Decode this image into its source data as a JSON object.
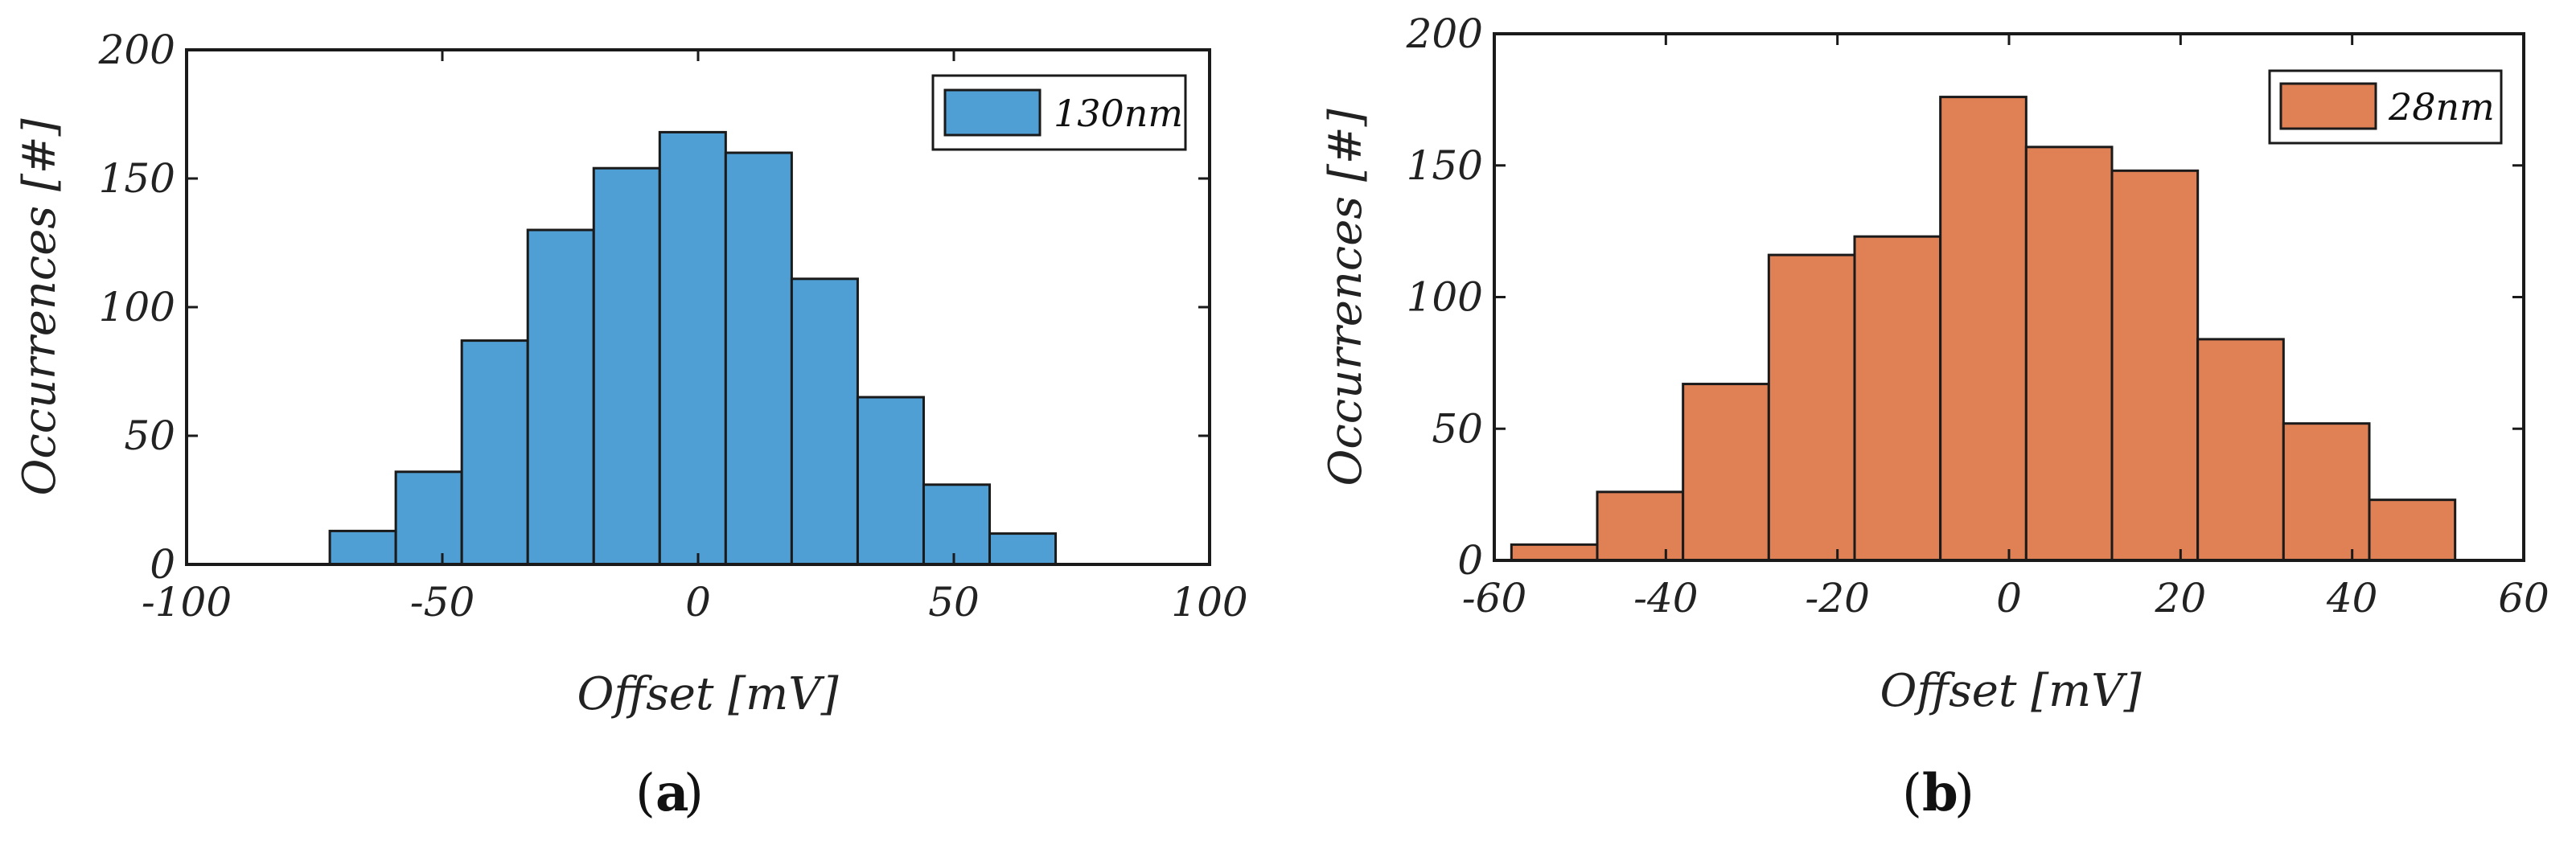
{
  "chart_data": [
    {
      "type": "bar",
      "subtype": "histogram",
      "caption_letter": "a",
      "xlabel": "Offset [mV]",
      "ylabel": "Occurrences [#]",
      "xlim": [
        -100,
        100
      ],
      "ylim": [
        0,
        200
      ],
      "xticks": [
        "-100",
        "-50",
        "0",
        "50",
        "100"
      ],
      "yticks": [
        "0",
        "50",
        "100",
        "150",
        "200"
      ],
      "grid": false,
      "legend_position": "top-right",
      "series": [
        {
          "name": "130nm",
          "color": "#4F9FD5",
          "bin_edges": [
            -72,
            -59.1,
            -46.2,
            -33.3,
            -20.4,
            -7.5,
            5.4,
            18.3,
            31.2,
            44.1,
            57,
            69.9
          ],
          "values": [
            13,
            36,
            87,
            130,
            154,
            168,
            160,
            111,
            65,
            31,
            12
          ]
        }
      ]
    },
    {
      "type": "bar",
      "subtype": "histogram",
      "caption_letter": "b",
      "xlabel": "Offset [mV]",
      "ylabel": "Occurrences [#]",
      "xlim": [
        -60,
        60
      ],
      "ylim": [
        0,
        200
      ],
      "xticks": [
        "-60",
        "-40",
        "-20",
        "0",
        "20",
        "40",
        "60"
      ],
      "yticks": [
        "0",
        "50",
        "100",
        "150",
        "200"
      ],
      "grid": false,
      "legend_position": "top-right",
      "series": [
        {
          "name": "28nm",
          "color": "#E08055",
          "bin_edges": [
            -58,
            -48,
            -38,
            -28,
            -18,
            -8,
            2,
            12,
            22,
            32,
            42,
            52
          ],
          "values": [
            6,
            26,
            67,
            116,
            123,
            176,
            157,
            148,
            84,
            52,
            23
          ]
        }
      ]
    }
  ]
}
